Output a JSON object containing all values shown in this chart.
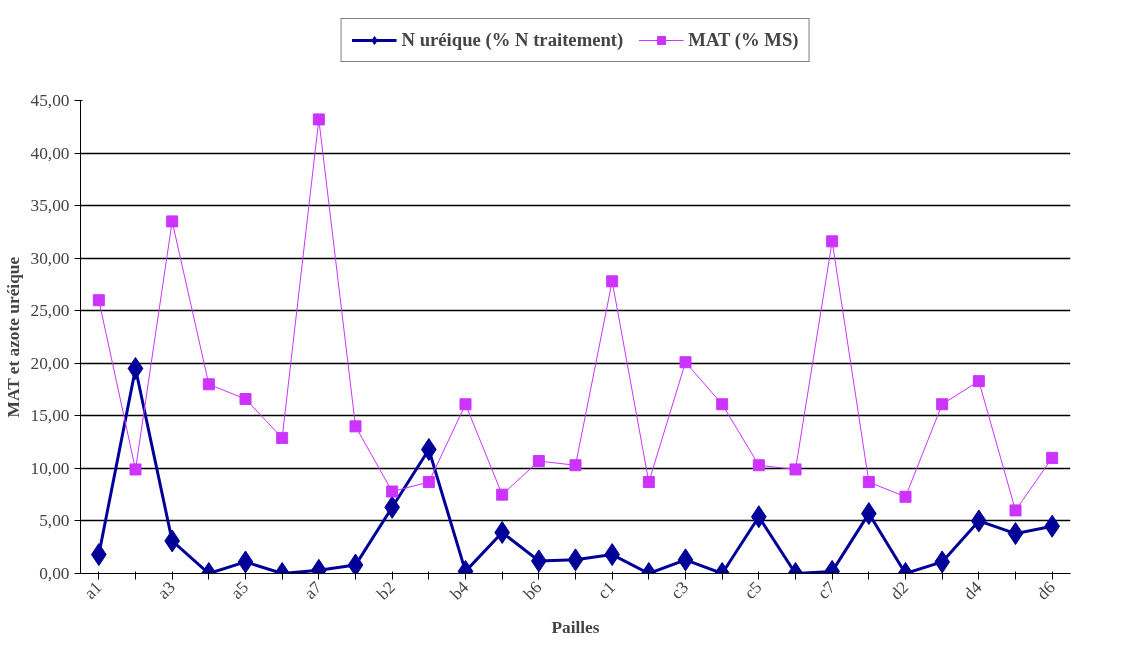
{
  "chart_data": {
    "type": "line",
    "xlabel": "Pailles",
    "ylabel": "MAT et azote uréique",
    "categories": [
      "a1",
      null,
      "a3",
      null,
      "a5",
      null,
      "a7",
      null,
      "b2",
      null,
      "b4",
      null,
      "b6",
      null,
      "c1",
      null,
      "c3",
      null,
      "c5",
      null,
      "c7",
      null,
      "d2",
      null,
      "d4",
      null,
      "d6"
    ],
    "series": [
      {
        "name": "N uréique (% N traitement)",
        "color": "#000099",
        "marker": "diamond",
        "values": [
          1.8,
          19.5,
          3.1,
          0.0,
          1.1,
          0.0,
          0.3,
          0.8,
          6.3,
          11.8,
          0.2,
          3.9,
          1.2,
          1.3,
          1.8,
          0.0,
          1.3,
          0.0,
          5.4,
          0.0,
          0.2,
          5.7,
          0.0,
          1.1,
          5.0,
          3.8,
          4.5
        ]
      },
      {
        "name": "MAT (% MS)",
        "color": "#cc33ff",
        "marker": "square",
        "values": [
          26.0,
          9.9,
          33.5,
          18.0,
          16.6,
          12.9,
          43.2,
          14.0,
          7.8,
          8.7,
          16.1,
          7.5,
          10.7,
          10.3,
          27.8,
          8.7,
          20.1,
          16.1,
          10.3,
          9.9,
          31.6,
          8.7,
          7.3,
          16.1,
          18.3,
          6.0,
          11.0
        ]
      }
    ],
    "ylim": [
      0,
      45
    ],
    "yticks": [
      {
        "value": 0,
        "label": "0,00"
      },
      {
        "value": 5,
        "label": "5,00"
      },
      {
        "value": 10,
        "label": "10,00"
      },
      {
        "value": 15,
        "label": "15,00"
      },
      {
        "value": 20,
        "label": "20,00"
      },
      {
        "value": 25,
        "label": "25,00"
      },
      {
        "value": 30,
        "label": "30,00"
      },
      {
        "value": 35,
        "label": "35,00"
      },
      {
        "value": 40,
        "label": "40,00"
      },
      {
        "value": 45,
        "label": "45,00"
      }
    ],
    "grid": "y",
    "legend": "top",
    "line_style": "solid"
  }
}
